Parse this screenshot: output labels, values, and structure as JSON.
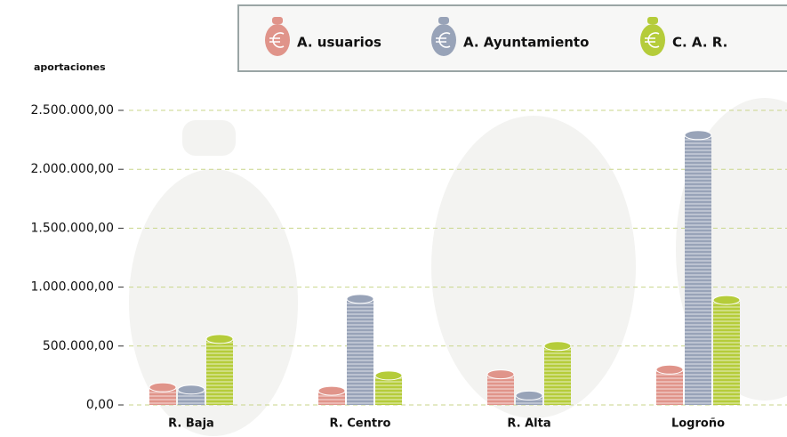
{
  "chart_data": {
    "type": "bar",
    "y_label": "aportaciones",
    "categories": [
      "R. Baja",
      "R. Centro",
      "R. Alta",
      "Logroño"
    ],
    "series": [
      {
        "name": "A. usuarios",
        "color": "#e0948a",
        "values": [
          150000,
          120000,
          260000,
          300000
        ]
      },
      {
        "name": "A. Ayuntamiento",
        "color": "#98a3b8",
        "values": [
          130000,
          900000,
          80000,
          2290000
        ]
      },
      {
        "name": "C. A. R.",
        "color": "#b5cc3a",
        "values": [
          560000,
          250000,
          500000,
          890000
        ]
      }
    ],
    "ylim": [
      0,
      2500000
    ],
    "yticks": [
      {
        "value": 0,
        "label": "0,00"
      },
      {
        "value": 500000,
        "label": "500.000,00"
      },
      {
        "value": 1000000,
        "label": "1.000.000,00"
      },
      {
        "value": 1500000,
        "label": "1.500.000,00"
      },
      {
        "value": 2000000,
        "label": "2.000.000,00"
      },
      {
        "value": 2500000,
        "label": "2.500.000,00"
      }
    ],
    "grid": true
  }
}
